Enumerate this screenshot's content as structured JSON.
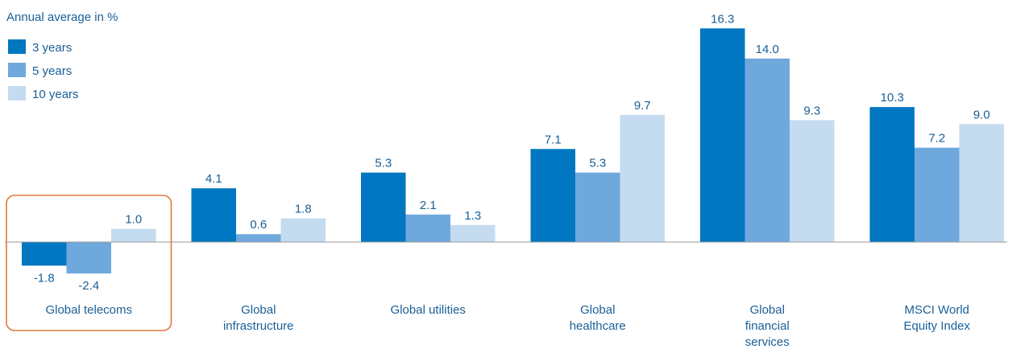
{
  "chart_data": {
    "type": "bar",
    "subtitle": "Annual average in %",
    "categories": [
      "Global telecoms",
      "Global infrastructure",
      "Global utilities",
      "Global healthcare",
      "Global financial services",
      "MSCI World Equity Index"
    ],
    "category_label_lines": [
      [
        "Global telecoms"
      ],
      [
        "Global",
        "infrastructure"
      ],
      [
        "Global utilities"
      ],
      [
        "Global",
        "healthcare"
      ],
      [
        "Global",
        "financial",
        "services"
      ],
      [
        "MSCI World",
        "Equity Index"
      ]
    ],
    "series": [
      {
        "name": "3 years",
        "color": "#0077c0",
        "values": [
          -1.8,
          4.1,
          5.3,
          7.1,
          16.3,
          10.3
        ],
        "labels": [
          "-1.8",
          "4.1",
          "5.3",
          "7.1",
          "16.3",
          "10.3"
        ]
      },
      {
        "name": "5 years",
        "color": "#6ea8dc",
        "values": [
          -2.4,
          0.6,
          2.1,
          5.3,
          14.0,
          7.2
        ],
        "labels": [
          "-2.4",
          "0.6",
          "2.1",
          "5.3",
          "14.0",
          "7.2"
        ]
      },
      {
        "name": "10 years",
        "color": "#c4dbf0",
        "values": [
          1.0,
          1.8,
          1.3,
          9.7,
          9.3,
          9.0
        ],
        "labels": [
          "1.0",
          "1.8",
          "1.3",
          "9.7",
          "9.3",
          "9.0"
        ]
      }
    ],
    "ylim": [
      -2.4,
      16.3
    ],
    "grid": false,
    "legend_position": "top-left",
    "highlighted_category": "Global telecoms",
    "highlight_color": "#e07a3a",
    "baseline_color": "#9a9a9a",
    "text_color": "#1a5f96"
  }
}
